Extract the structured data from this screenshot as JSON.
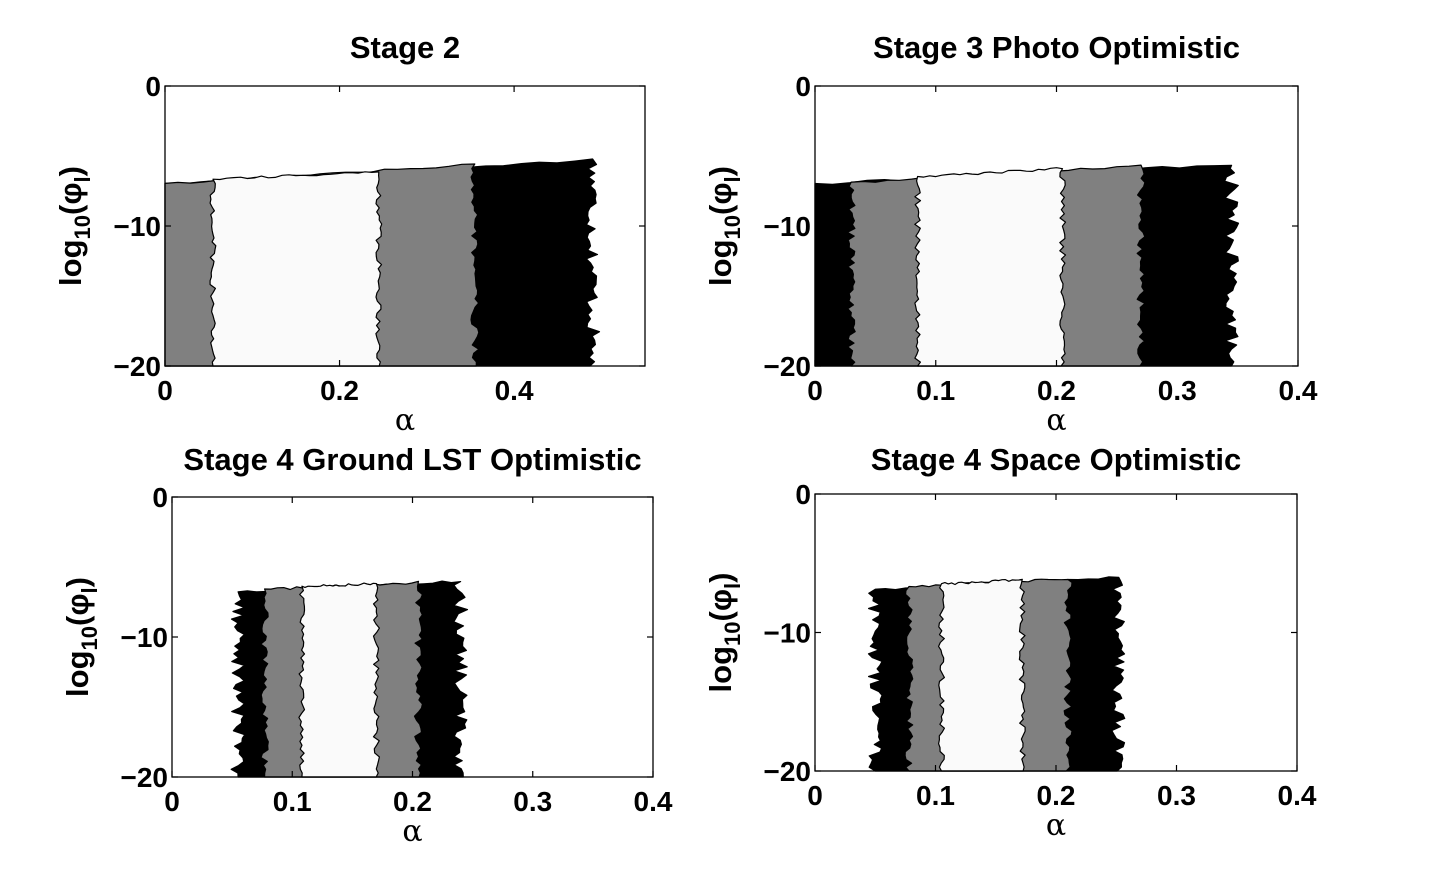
{
  "colors": {
    "background": "#ffffff",
    "region_outer": "#000000",
    "region_middle": "#808080",
    "region_inner": "#fafafa",
    "axes": "#000000"
  },
  "chart_data": [
    {
      "type": "contour",
      "title": "Stage 2",
      "xlabel": "α",
      "ylabel": {
        "main": "log",
        "sub": "10",
        "paren_open": "(",
        "symbol": "φ",
        "symbol_sub": "l",
        "paren_close": ")"
      },
      "xlim": [
        0,
        0.55
      ],
      "ylim": [
        -20,
        0
      ],
      "xticks": [
        0,
        0.2,
        0.4
      ],
      "xtick_labels": [
        "0",
        "0.2",
        "0.4"
      ],
      "yticks": [
        0,
        -10,
        -20
      ],
      "ytick_labels": [
        "0",
        "−10",
        "−20"
      ],
      "regions": [
        {
          "name": "outer",
          "x": [
            0.0,
            0.49
          ],
          "ytop": [
            -7.0,
            -5.3
          ]
        },
        {
          "name": "middle",
          "x": [
            0.0,
            0.355
          ],
          "ytop": [
            -7.0,
            -5.6
          ]
        },
        {
          "name": "inner",
          "x": [
            0.055,
            0.245
          ],
          "ytop": [
            -6.7,
            -6.1
          ]
        }
      ]
    },
    {
      "type": "contour",
      "title": "Stage 3 Photo Optimistic",
      "xlabel": "α",
      "ylabel": {
        "main": "log",
        "sub": "10",
        "paren_open": "(",
        "symbol": "φ",
        "symbol_sub": "l",
        "paren_close": ")"
      },
      "xlim": [
        0,
        0.4
      ],
      "ylim": [
        -20,
        0
      ],
      "xticks": [
        0,
        0.1,
        0.2,
        0.3,
        0.4
      ],
      "xtick_labels": [
        "0",
        "0.1",
        "0.2",
        "0.3",
        "0.4"
      ],
      "yticks": [
        0,
        -10,
        -20
      ],
      "ytick_labels": [
        "0",
        "−10",
        "−20"
      ],
      "regions": [
        {
          "name": "outer",
          "x": [
            0.0,
            0.345
          ],
          "ytop": [
            -7.0,
            -5.6
          ]
        },
        {
          "name": "middle",
          "x": [
            0.03,
            0.27
          ],
          "ytop": [
            -6.9,
            -5.7
          ]
        },
        {
          "name": "inner",
          "x": [
            0.085,
            0.205
          ],
          "ytop": [
            -6.5,
            -5.9
          ]
        }
      ]
    },
    {
      "type": "contour",
      "title": "Stage 4 Ground LST Optimistic",
      "xlabel": "α",
      "ylabel": {
        "main": "log",
        "sub": "10",
        "paren_open": "(",
        "symbol": "φ",
        "symbol_sub": "l",
        "paren_close": ")"
      },
      "xlim": [
        0,
        0.4
      ],
      "ylim": [
        -20,
        0
      ],
      "xticks": [
        0,
        0.1,
        0.2,
        0.3,
        0.4
      ],
      "xtick_labels": [
        "0",
        "0.1",
        "0.2",
        "0.3",
        "0.4"
      ],
      "yticks": [
        0,
        -10,
        -20
      ],
      "ytick_labels": [
        "0",
        "−10",
        "−20"
      ],
      "regions": [
        {
          "name": "outer",
          "x": [
            0.055,
            0.24
          ],
          "ytop": [
            -6.8,
            -6.0
          ]
        },
        {
          "name": "middle",
          "x": [
            0.077,
            0.205
          ],
          "ytop": [
            -6.6,
            -6.1
          ]
        },
        {
          "name": "inner",
          "x": [
            0.108,
            0.17
          ],
          "ytop": [
            -6.4,
            -6.2
          ]
        }
      ]
    },
    {
      "type": "contour",
      "title": "Stage 4 Space Optimistic",
      "xlabel": "α",
      "ylabel": {
        "main": "log",
        "sub": "10",
        "paren_open": "(",
        "symbol": "φ",
        "symbol_sub": "l",
        "paren_close": ")"
      },
      "xlim": [
        0,
        0.4
      ],
      "ylim": [
        -20,
        0
      ],
      "xticks": [
        0,
        0.1,
        0.2,
        0.3,
        0.4
      ],
      "xtick_labels": [
        "0",
        "0.1",
        "0.2",
        "0.3",
        "0.4"
      ],
      "yticks": [
        0,
        -10,
        -20
      ],
      "ytick_labels": [
        "0",
        "−10",
        "−20"
      ],
      "regions": [
        {
          "name": "outer",
          "x": [
            0.05,
            0.252
          ],
          "ytop": [
            -6.9,
            -6.0
          ]
        },
        {
          "name": "middle",
          "x": [
            0.078,
            0.21
          ],
          "ytop": [
            -6.7,
            -6.1
          ]
        },
        {
          "name": "inner",
          "x": [
            0.105,
            0.172
          ],
          "ytop": [
            -6.5,
            -6.2
          ]
        }
      ]
    }
  ]
}
